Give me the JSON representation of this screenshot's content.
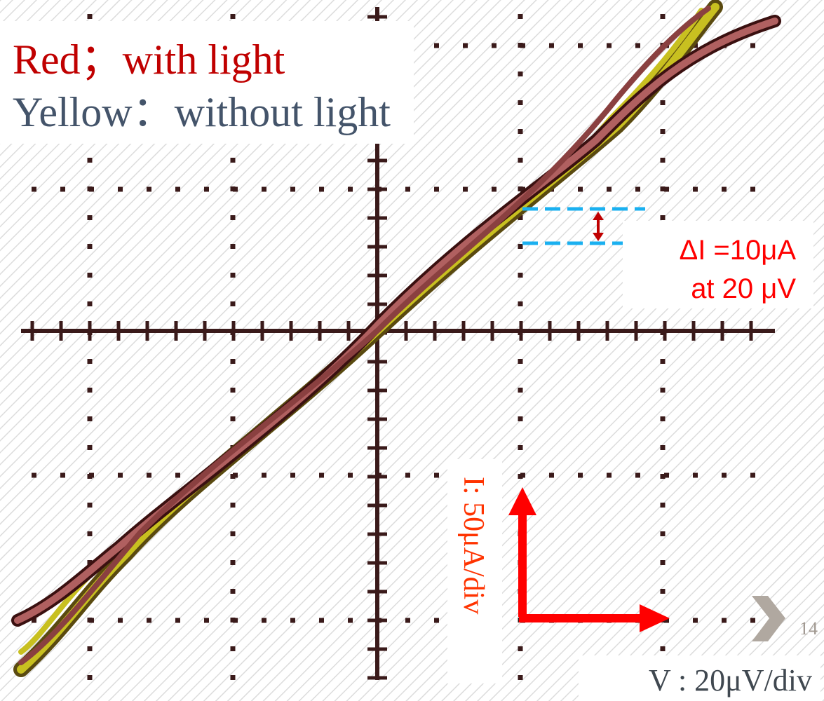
{
  "legend": {
    "red": "Red；with light",
    "yellow": "Yellow：without light"
  },
  "annotation": {
    "delta": "ΔI =10μA",
    "at": "at 20 μV"
  },
  "scale": {
    "current": "I:  50μA/div",
    "voltage": "V :  20μV/div"
  },
  "page_number": "14"
}
